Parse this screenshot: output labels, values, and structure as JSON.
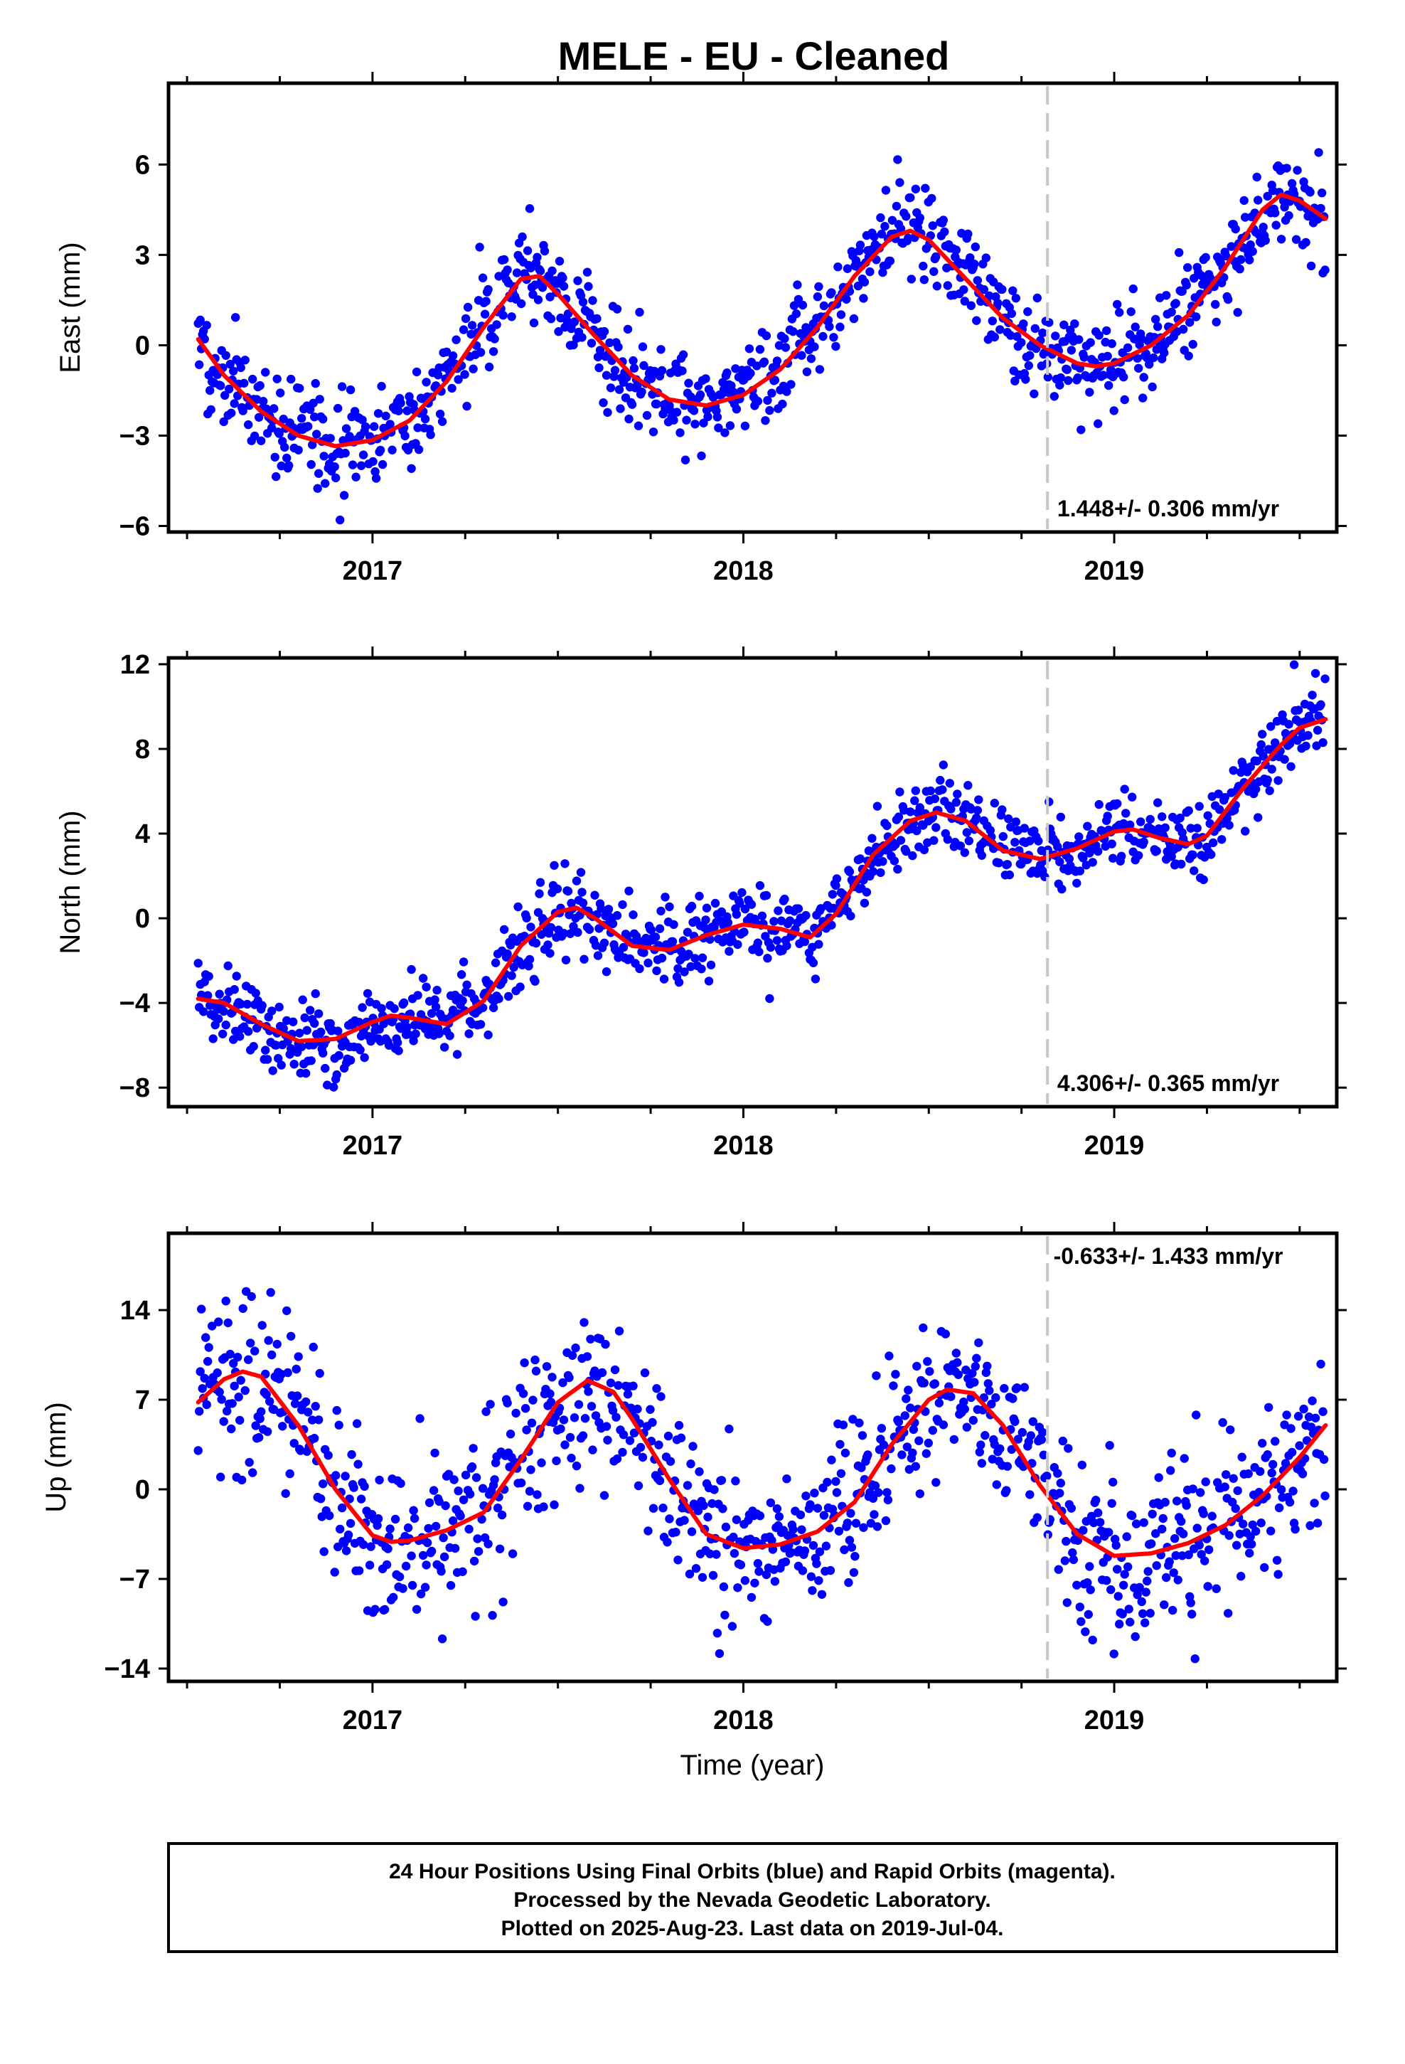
{
  "title": "MELE  - EU - Cleaned",
  "time_label": "Time (year)",
  "footer": {
    "line1": "24 Hour Positions Using Final Orbits (blue) and Rapid Orbits (magenta).",
    "line2": "Processed by the Nevada Geodetic Laboratory.",
    "line3": "Plotted on 2025-Aug-23. Last data on 2019-Jul-04."
  },
  "colors": {
    "points": "#0000ff",
    "fit": "#ff0000",
    "break_line": "#c8c8c8",
    "frame": "#000000"
  },
  "chart_data": [
    {
      "type": "scatter",
      "name": "east",
      "ylabel": "East (mm)",
      "rate": "1.448+/- 0.306 mm/yr",
      "xlim": [
        2016.45,
        2019.6
      ],
      "ylim": [
        -6.2,
        8.7
      ],
      "yticks": [
        -6,
        -3,
        0,
        3,
        6
      ],
      "xticks": [
        2017,
        2018,
        2019
      ],
      "break_at": 2018.82,
      "fit_line": [
        [
          2016.53,
          0.2
        ],
        [
          2016.6,
          -1.0
        ],
        [
          2016.7,
          -2.2
        ],
        [
          2016.8,
          -3.0
        ],
        [
          2016.9,
          -3.35
        ],
        [
          2017.0,
          -3.15
        ],
        [
          2017.1,
          -2.5
        ],
        [
          2017.2,
          -1.2
        ],
        [
          2017.3,
          0.6
        ],
        [
          2017.4,
          2.2
        ],
        [
          2017.45,
          2.3
        ],
        [
          2017.5,
          1.7
        ],
        [
          2017.6,
          0.3
        ],
        [
          2017.7,
          -1.0
        ],
        [
          2017.8,
          -1.8
        ],
        [
          2017.9,
          -2.0
        ],
        [
          2018.0,
          -1.65
        ],
        [
          2018.1,
          -0.8
        ],
        [
          2018.2,
          0.6
        ],
        [
          2018.3,
          2.3
        ],
        [
          2018.4,
          3.6
        ],
        [
          2018.45,
          3.8
        ],
        [
          2018.5,
          3.5
        ],
        [
          2018.6,
          2.2
        ],
        [
          2018.7,
          0.9
        ],
        [
          2018.8,
          0.0
        ],
        [
          2018.9,
          -0.6
        ],
        [
          2018.95,
          -0.7
        ],
        [
          2019.0,
          -0.6
        ],
        [
          2019.1,
          0.0
        ],
        [
          2019.2,
          1.0
        ],
        [
          2019.3,
          2.6
        ],
        [
          2019.4,
          4.5
        ],
        [
          2019.45,
          5.0
        ],
        [
          2019.5,
          4.8
        ],
        [
          2019.57,
          4.2
        ]
      ],
      "season": {
        "amp": 2.3,
        "phase": 0.17,
        "trend": 1.448,
        "t0": 2018.0,
        "offset": -0.5,
        "scatter": 0.8
      }
    },
    {
      "type": "scatter",
      "name": "north",
      "ylabel": "North (mm)",
      "rate": "4.306+/- 0.365 mm/yr",
      "xlim": [
        2016.45,
        2019.6
      ],
      "ylim": [
        -8.9,
        12.3
      ],
      "yticks": [
        -8,
        -4,
        0,
        4,
        8,
        12
      ],
      "xticks": [
        2017,
        2018,
        2019
      ],
      "break_at": 2018.82,
      "fit_line": [
        [
          2016.53,
          -3.8
        ],
        [
          2016.6,
          -4.0
        ],
        [
          2016.7,
          -5.0
        ],
        [
          2016.8,
          -5.8
        ],
        [
          2016.9,
          -5.7
        ],
        [
          2017.0,
          -4.9
        ],
        [
          2017.05,
          -4.6
        ],
        [
          2017.1,
          -4.7
        ],
        [
          2017.2,
          -5.0
        ],
        [
          2017.3,
          -3.9
        ],
        [
          2017.4,
          -1.3
        ],
        [
          2017.5,
          0.3
        ],
        [
          2017.55,
          0.5
        ],
        [
          2017.6,
          0.0
        ],
        [
          2017.7,
          -1.3
        ],
        [
          2017.8,
          -1.5
        ],
        [
          2017.9,
          -0.8
        ],
        [
          2018.0,
          -0.3
        ],
        [
          2018.1,
          -0.5
        ],
        [
          2018.18,
          -0.9
        ],
        [
          2018.25,
          0.2
        ],
        [
          2018.35,
          3.0
        ],
        [
          2018.45,
          4.6
        ],
        [
          2018.52,
          5.0
        ],
        [
          2018.6,
          4.6
        ],
        [
          2018.7,
          3.2
        ],
        [
          2018.8,
          2.8
        ],
        [
          2018.9,
          3.3
        ],
        [
          2019.0,
          4.1
        ],
        [
          2019.05,
          4.2
        ],
        [
          2019.12,
          3.8
        ],
        [
          2019.2,
          3.5
        ],
        [
          2019.25,
          3.9
        ],
        [
          2019.35,
          6.2
        ],
        [
          2019.45,
          8.2
        ],
        [
          2019.5,
          9.0
        ],
        [
          2019.57,
          9.4
        ]
      ],
      "season": {
        "amp": 1.4,
        "phase": 0.3,
        "trend": 4.306,
        "t0": 2018.0,
        "offset": -0.5,
        "scatter": 0.9
      }
    },
    {
      "type": "scatter",
      "name": "up",
      "ylabel": "Up (mm)",
      "rate": "-0.633+/- 1.433 mm/yr",
      "xlim": [
        2016.45,
        2019.6
      ],
      "ylim": [
        -15.0,
        20.0
      ],
      "yticks": [
        -14,
        -7,
        0,
        7,
        14
      ],
      "xticks": [
        2017,
        2018,
        2019
      ],
      "break_at": 2018.82,
      "fit_line": [
        [
          2016.53,
          6.8
        ],
        [
          2016.6,
          8.6
        ],
        [
          2016.65,
          9.2
        ],
        [
          2016.7,
          8.8
        ],
        [
          2016.8,
          5.0
        ],
        [
          2016.9,
          0.0
        ],
        [
          2017.0,
          -3.6
        ],
        [
          2017.05,
          -4.1
        ],
        [
          2017.1,
          -4.0
        ],
        [
          2017.2,
          -3.2
        ],
        [
          2017.3,
          -1.8
        ],
        [
          2017.4,
          2.3
        ],
        [
          2017.5,
          6.8
        ],
        [
          2017.58,
          8.5
        ],
        [
          2017.65,
          7.6
        ],
        [
          2017.7,
          5.5
        ],
        [
          2017.8,
          0.8
        ],
        [
          2017.9,
          -3.5
        ],
        [
          2018.0,
          -4.6
        ],
        [
          2018.1,
          -4.3
        ],
        [
          2018.2,
          -3.3
        ],
        [
          2018.3,
          -1.0
        ],
        [
          2018.4,
          3.5
        ],
        [
          2018.5,
          7.0
        ],
        [
          2018.55,
          7.8
        ],
        [
          2018.62,
          7.5
        ],
        [
          2018.7,
          5.0
        ],
        [
          2018.8,
          0.3
        ],
        [
          2018.9,
          -3.5
        ],
        [
          2019.0,
          -5.2
        ],
        [
          2019.1,
          -5.0
        ],
        [
          2019.2,
          -4.2
        ],
        [
          2019.3,
          -2.8
        ],
        [
          2019.4,
          -0.5
        ],
        [
          2019.5,
          2.5
        ],
        [
          2019.57,
          5.0
        ]
      ],
      "season": {
        "amp": 6.3,
        "phase": 0.38,
        "trend": -0.633,
        "t0": 2018.0,
        "offset": 1.2,
        "scatter": 3.4
      }
    }
  ]
}
